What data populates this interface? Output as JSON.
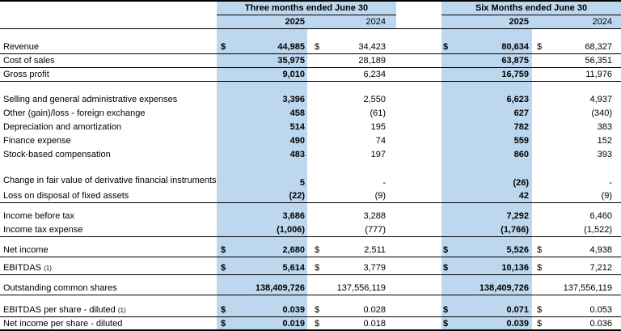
{
  "currency_symbol": "$",
  "colors": {
    "highlight_blue": "#BDD7EE",
    "border_black": "#000000"
  },
  "header": {
    "period_three_months": "Three months ended June 30",
    "period_six_months": "Six Months ended June 30",
    "years": [
      "2025",
      "2024",
      "2025",
      "2024"
    ]
  },
  "rows": [
    {
      "spacer": 14
    },
    {
      "label": "Revenue",
      "dollar": true,
      "values": [
        "44,985",
        "34,423",
        "80,634",
        "68,327"
      ],
      "rule": true
    },
    {
      "label": "Cost of sales",
      "values": [
        "35,975",
        "28,189",
        "63,875",
        "56,351"
      ],
      "rule": true
    },
    {
      "label": "Gross profit",
      "values": [
        "9,010",
        "6,234",
        "16,759",
        "11,976"
      ],
      "rule": true
    },
    {
      "spacer": 14
    },
    {
      "label": "Selling and general administrative expenses",
      "values": [
        "3,396",
        "2,550",
        "6,623",
        "4,937"
      ]
    },
    {
      "label": "Other (gain)/loss - foreign exchange",
      "values": [
        "458",
        "(61)",
        "627",
        "(340)"
      ]
    },
    {
      "label": "Depreciation and amortization",
      "values": [
        "514",
        "195",
        "782",
        "383"
      ]
    },
    {
      "label": "Finance expense",
      "values": [
        "490",
        "74",
        "559",
        "152"
      ]
    },
    {
      "label": "Stock-based compensation",
      "values": [
        "483",
        "197",
        "860",
        "393"
      ]
    },
    {
      "label": "Change in fair value of derivative financial instruments",
      "values": [
        "5",
        "-",
        "(26)",
        "-"
      ],
      "tall": true
    },
    {
      "label": "Loss on disposal of fixed assets",
      "values": [
        "(22)",
        "(9)",
        "42",
        "(9)"
      ],
      "rule": true
    },
    {
      "spacer": 8
    },
    {
      "label": "Income before tax",
      "values": [
        "3,686",
        "3,288",
        "7,292",
        "6,460"
      ]
    },
    {
      "label": "Income tax expense",
      "values": [
        "(1,006)",
        "(777)",
        "(1,766)",
        "(1,522)"
      ],
      "rule": true
    },
    {
      "spacer": 8
    },
    {
      "label": "Net income",
      "dollar": true,
      "values": [
        "2,680",
        "2,511",
        "5,526",
        "4,938"
      ],
      "rule": true
    },
    {
      "spacer": 5
    },
    {
      "label": "EBITDAS",
      "sup": "(1)",
      "dollar": true,
      "values": [
        "5,614",
        "3,779",
        "10,136",
        "7,212"
      ],
      "rule": true
    },
    {
      "spacer": 8
    },
    {
      "label": "Outstanding common shares",
      "values": [
        "138,409,726",
        "137,556,119",
        "138,409,726",
        "137,556,119"
      ],
      "rule": true
    },
    {
      "spacer": 10
    },
    {
      "label": "EBITDAS per share - diluted",
      "sup": "(1)",
      "dollar": true,
      "values": [
        "0.039",
        "0.028",
        "0.071",
        "0.053"
      ],
      "rule": true
    },
    {
      "label": "Net income per share - diluted",
      "dollar": true,
      "values": [
        "0.019",
        "0.018",
        "0.039",
        "0.036"
      ]
    }
  ]
}
